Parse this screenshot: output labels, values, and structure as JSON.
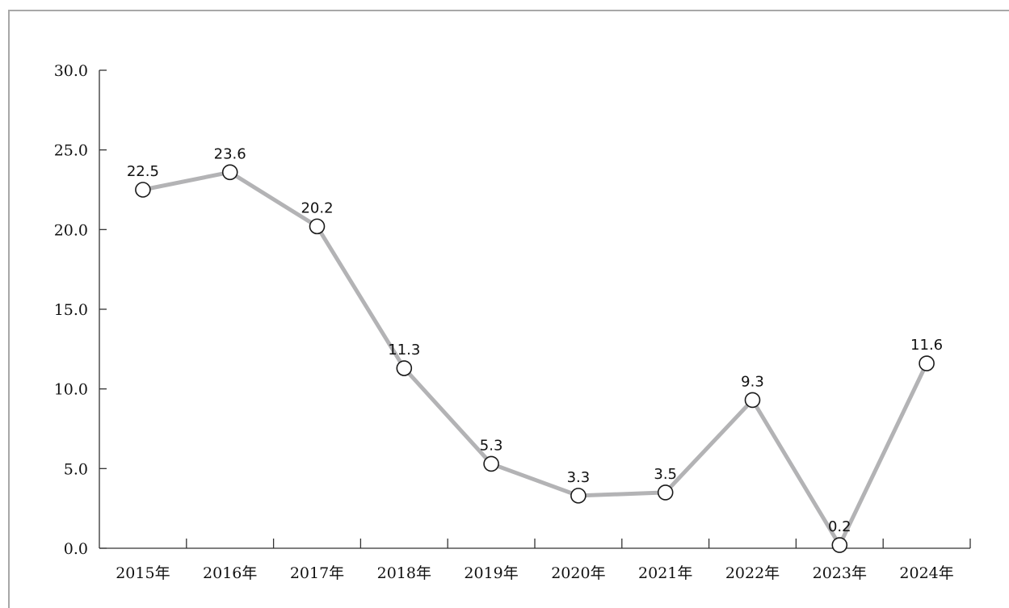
{
  "chart_data": {
    "type": "line",
    "categories": [
      "2015年",
      "2016年",
      "2017年",
      "2018年",
      "2019年",
      "2020年",
      "2021年",
      "2022年",
      "2023年",
      "2024年"
    ],
    "series": [
      {
        "values": [
          22.5,
          23.6,
          20.2,
          11.3,
          5.3,
          3.3,
          3.5,
          9.3,
          0.2,
          11.6
        ]
      }
    ],
    "yticks": [
      "0.0",
      "5.0",
      "10.0",
      "15.0",
      "20.0",
      "25.0",
      "30.0"
    ],
    "ylim": [
      0,
      30
    ],
    "title": "",
    "xlabel": "",
    "ylabel": "",
    "grid": false,
    "colors": {
      "line": "#b3b3b5",
      "marker_fill": "#ffffff",
      "marker_stroke": "#1a1a1a",
      "axis": "#333333"
    }
  }
}
